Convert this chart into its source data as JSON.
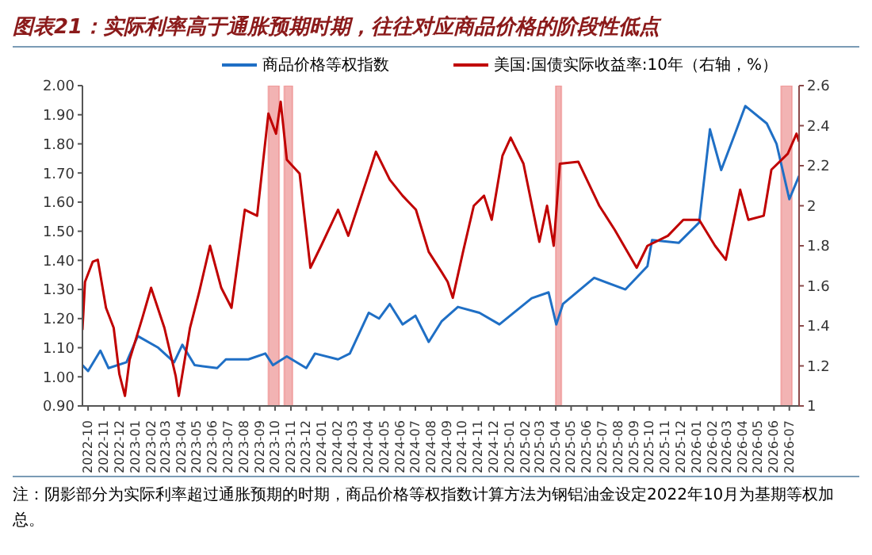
{
  "chart_data": {
    "type": "line",
    "title": "图表21：实际利率高于通胀预期时期，往往对应商品价格的阶段性低点",
    "annotations": [
      "注：阴影部分为实际利率超过通胀预期的时期，商品价格等权指数计算方法为钢铝油金设定2022年10月为基期等权加总。"
    ],
    "legend": "top",
    "xlim": [
      "2022-09-20",
      "2026-07-20"
    ],
    "xticks": [
      "2022-10",
      "2022-11",
      "2022-12",
      "2023-01",
      "2023-02",
      "2023-03",
      "2023-04",
      "2023-05",
      "2023-06",
      "2023-07",
      "2023-08",
      "2023-09",
      "2023-10",
      "2023-11",
      "2023-12",
      "2024-01",
      "2024-02",
      "2024-03",
      "2024-04",
      "2024-05",
      "2024-06",
      "2024-07",
      "2024-08",
      "2024-09",
      "2024-10",
      "2024-11",
      "2024-12",
      "2025-01",
      "2025-02",
      "2025-03",
      "2025-04",
      "2025-05",
      "2025-06",
      "2025-07",
      "2025-08",
      "2025-09",
      "2025-10",
      "2025-11",
      "2025-12",
      "2026-01",
      "2026-02",
      "2026-03",
      "2026-04",
      "2026-05",
      "2026-06",
      "2026-07"
    ],
    "ylim": [
      0.9,
      2.0
    ],
    "yticks": [
      {
        "value": 0.9,
        "label": "0.90"
      },
      {
        "value": 1.0,
        "label": "1.00"
      },
      {
        "value": 1.1,
        "label": "1.10"
      },
      {
        "value": 1.2,
        "label": "1.20"
      },
      {
        "value": 1.3,
        "label": "1.30"
      },
      {
        "value": 1.4,
        "label": "1.40"
      },
      {
        "value": 1.5,
        "label": "1.50"
      },
      {
        "value": 1.6,
        "label": "1.60"
      },
      {
        "value": 1.7,
        "label": "1.70"
      },
      {
        "value": 1.8,
        "label": "1.80"
      },
      {
        "value": 1.9,
        "label": "1.90"
      },
      {
        "value": 2.0,
        "label": "2.00"
      }
    ],
    "y2lim": [
      1,
      2.6
    ],
    "y2ticks": [
      1,
      1.2,
      1.4,
      1.6,
      1.8,
      2,
      2.2,
      2.4,
      2.6
    ],
    "bands": [
      {
        "axis": "x",
        "from": "2023-09-18",
        "to": "2023-10-09",
        "color": "#f2b3b3"
      },
      {
        "axis": "x",
        "from": "2023-10-19",
        "to": "2023-11-04",
        "color": "#f2b3b3"
      },
      {
        "axis": "x",
        "from": "2025-04-01",
        "to": "2025-04-12",
        "color": "#f2b3b3"
      },
      {
        "axis": "x",
        "from": "2026-06-15",
        "to": "2026-07-06",
        "color": "#f2b3b3"
      }
    ],
    "series": [
      {
        "name": "商品价格等权指数",
        "color": "#1f6fc5",
        "x": [
          "2022-09-20",
          "2022-10-01",
          "2022-10-25",
          "2022-11-10",
          "2022-12-15",
          "2023-01-06",
          "2023-02-15",
          "2023-03-18",
          "2023-04-03",
          "2023-04-27",
          "2023-06-10",
          "2023-06-27",
          "2023-08-10",
          "2023-09-12",
          "2023-09-27",
          "2023-10-24",
          "2023-12-01",
          "2023-12-18",
          "2024-02-01",
          "2024-02-24",
          "2024-04-01",
          "2024-04-21",
          "2024-05-12",
          "2024-06-06",
          "2024-07-01",
          "2024-07-27",
          "2024-08-21",
          "2024-09-22",
          "2024-11-03",
          "2024-12-12",
          "2025-02-13",
          "2025-03-18",
          "2025-04-02",
          "2025-04-15",
          "2025-06-15",
          "2025-08-15",
          "2025-09-27",
          "2025-10-06",
          "2025-11-27",
          "2026-01-06",
          "2026-01-27",
          "2026-02-18",
          "2026-03-18",
          "2026-04-06",
          "2026-05-18",
          "2026-06-06",
          "2026-07-01",
          "2026-07-20"
        ],
        "values": [
          1.04,
          1.02,
          1.09,
          1.03,
          1.05,
          1.14,
          1.1,
          1.05,
          1.11,
          1.04,
          1.03,
          1.06,
          1.06,
          1.08,
          1.04,
          1.07,
          1.03,
          1.08,
          1.06,
          1.08,
          1.22,
          1.2,
          1.25,
          1.18,
          1.21,
          1.12,
          1.19,
          1.24,
          1.22,
          1.18,
          1.27,
          1.29,
          1.18,
          1.25,
          1.34,
          1.3,
          1.38,
          1.47,
          1.46,
          1.53,
          1.85,
          1.71,
          1.84,
          1.93,
          1.87,
          1.8,
          1.61,
          1.69
        ]
      },
      {
        "name": "美国:国债实际收益率:10年（右轴，%）",
        "color": "#c00000",
        "axis": "y2",
        "x": [
          "2022-09-20",
          "2022-09-25",
          "2022-10-10",
          "2022-10-20",
          "2022-11-05",
          "2022-11-20",
          "2022-12-01",
          "2022-12-12",
          "2022-12-21",
          "2023-01-15",
          "2023-02-01",
          "2023-02-27",
          "2023-03-21",
          "2023-03-27",
          "2023-04-18",
          "2023-05-06",
          "2023-05-27",
          "2023-06-18",
          "2023-07-08",
          "2023-08-03",
          "2023-08-27",
          "2023-09-18",
          "2023-10-03",
          "2023-10-12",
          "2023-10-24",
          "2023-11-18",
          "2023-12-09",
          "2023-12-30",
          "2024-02-01",
          "2024-02-21",
          "2024-04-01",
          "2024-04-15",
          "2024-05-12",
          "2024-06-06",
          "2024-07-02",
          "2024-07-27",
          "2024-08-21",
          "2024-09-02",
          "2024-09-12",
          "2024-10-02",
          "2024-10-23",
          "2024-11-12",
          "2024-11-27",
          "2024-12-18",
          "2025-01-03",
          "2025-01-28",
          "2025-02-28",
          "2025-03-15",
          "2025-03-28",
          "2025-04-09",
          "2025-05-15",
          "2025-06-25",
          "2025-07-25",
          "2025-09-06",
          "2025-09-27",
          "2025-11-06",
          "2025-12-06",
          "2026-01-06",
          "2026-02-06",
          "2026-02-27",
          "2026-03-27",
          "2026-04-12",
          "2026-05-12",
          "2026-05-27",
          "2026-06-28",
          "2026-07-15",
          "2026-07-20"
        ],
        "values": [
          1.38,
          1.62,
          1.72,
          1.73,
          1.49,
          1.39,
          1.16,
          1.05,
          1.23,
          1.44,
          1.59,
          1.39,
          1.15,
          1.05,
          1.39,
          1.57,
          1.8,
          1.59,
          1.49,
          1.98,
          1.95,
          2.46,
          2.36,
          2.52,
          2.23,
          2.16,
          1.69,
          1.8,
          1.98,
          1.85,
          2.16,
          2.27,
          2.13,
          2.05,
          1.98,
          1.77,
          1.67,
          1.62,
          1.54,
          1.77,
          2.0,
          2.05,
          1.93,
          2.25,
          2.34,
          2.21,
          1.82,
          2.0,
          1.8,
          2.21,
          2.22,
          2.0,
          1.88,
          1.69,
          1.8,
          1.85,
          1.93,
          1.93,
          1.8,
          1.73,
          2.08,
          1.93,
          1.95,
          2.18,
          2.26,
          2.36,
          2.32
        ]
      }
    ]
  }
}
